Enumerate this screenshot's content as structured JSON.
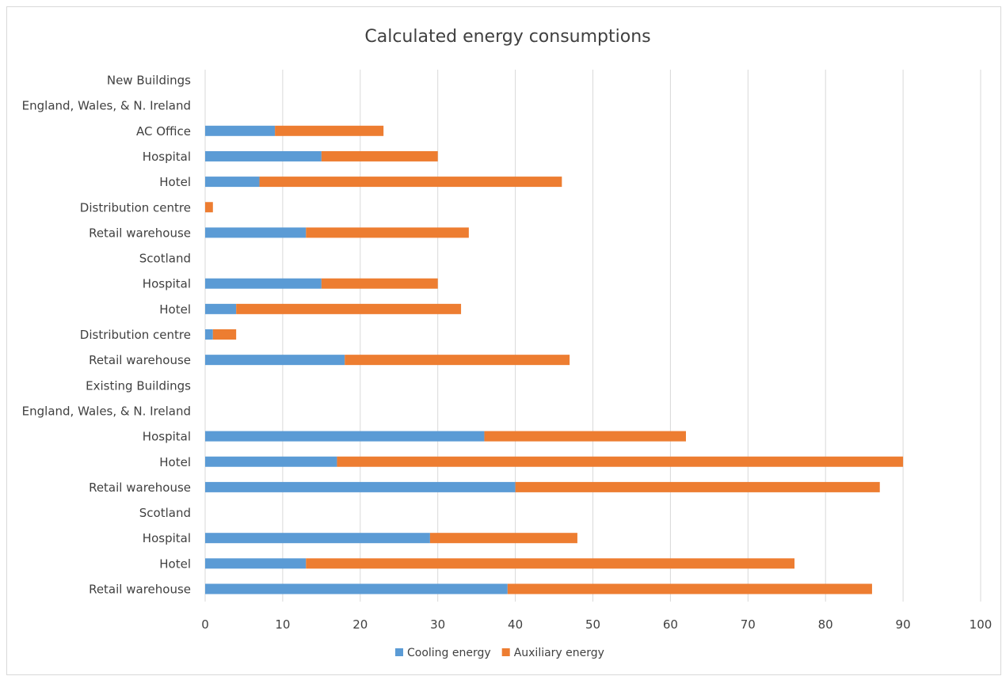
{
  "chart_data": {
    "type": "bar",
    "orientation": "horizontal",
    "stacked": true,
    "title": "Calculated energy consumptions",
    "xlabel": "",
    "ylabel": "",
    "xlim": [
      0,
      100
    ],
    "x_ticks": [
      "0",
      "10",
      "20",
      "30",
      "40",
      "50",
      "60",
      "70",
      "80",
      "90",
      "100"
    ],
    "grid": true,
    "legend_position": "bottom",
    "categories": [
      "New Buildings",
      "England, Wales, & N. Ireland",
      "AC Office",
      "Hospital",
      "Hotel",
      "Distribution centre",
      "Retail warehouse",
      "Scotland",
      "Hospital",
      "Hotel",
      "Distribution centre",
      "Retail warehouse",
      "Existing Buildings",
      "England, Wales, & N. Ireland",
      "Hospital",
      "Hotel",
      "Retail warehouse",
      "Scotland",
      "Hospital",
      "Hotel",
      "Retail warehouse"
    ],
    "series": [
      {
        "name": "Cooling energy",
        "color": "#5b9bd5",
        "values": [
          null,
          null,
          9,
          15,
          7,
          0,
          13,
          null,
          15,
          4,
          1,
          18,
          null,
          null,
          36,
          17,
          40,
          null,
          29,
          13,
          39
        ]
      },
      {
        "name": "Auxiliary energy",
        "color": "#ed7d31",
        "values": [
          null,
          null,
          14,
          15,
          39,
          1,
          21,
          null,
          15,
          29,
          3,
          29,
          null,
          null,
          26,
          73,
          47,
          null,
          19,
          63,
          47
        ]
      }
    ]
  }
}
